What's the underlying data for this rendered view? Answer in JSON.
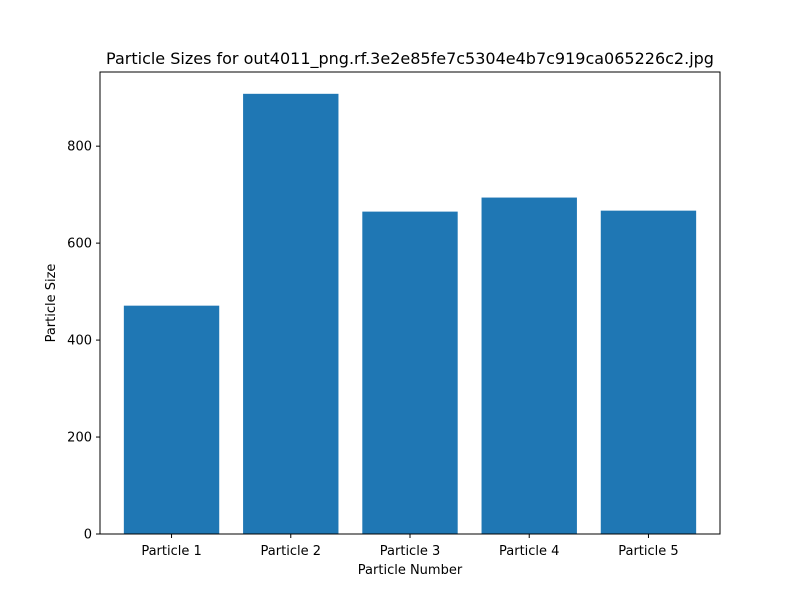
{
  "chart_data": {
    "type": "bar",
    "title": "Particle Sizes for out4011_png.rf.3e2e85fe7c5304e4b7c919ca065226c2.jpg",
    "xlabel": "Particle Number",
    "ylabel": "Particle Size",
    "categories": [
      "Particle 1",
      "Particle 2",
      "Particle 3",
      "Particle 4",
      "Particle 5"
    ],
    "values": [
      471,
      908,
      665,
      694,
      667
    ],
    "ylim": [
      0,
      953
    ],
    "yticks": [
      0,
      200,
      400,
      600,
      800
    ],
    "grid": false,
    "bar_color": "#1f77b4"
  }
}
